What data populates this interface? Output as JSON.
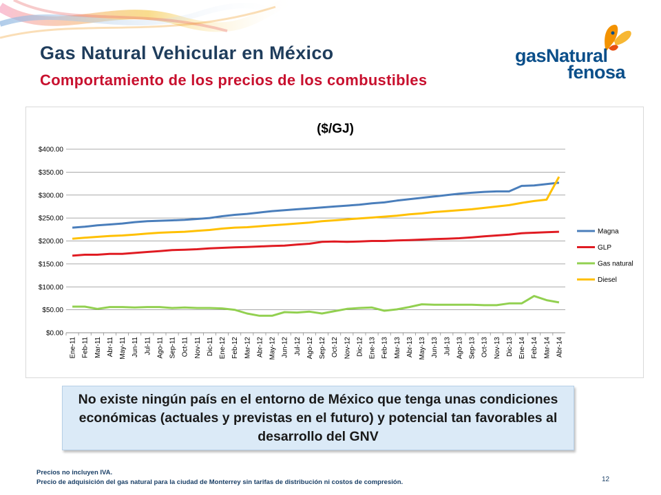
{
  "slide": {
    "title": "Gas Natural Vehicular en México",
    "subtitle": "Comportamiento de los precios de los combustibles",
    "logo_line1": "gasNatural",
    "logo_line2": "fenosa",
    "callout": "No existe ningún país en el entorno de México que tenga unas condiciones económicas (actuales y previstas en el futuro) y potencial tan favorables al desarrollo del GNV",
    "footer_line1": "Precios no incluyen IVA.",
    "footer_line2": "Precio de adquisición del gas natural para la ciudad de Monterrey sin tarifas de distribución ni costos de compresión.",
    "page_number": "12"
  },
  "colors": {
    "title": "#1f3d5c",
    "subtitle": "#c8102e",
    "logo": "#0b4f8a",
    "logo_butterfly": "#f39200"
  },
  "chart_data": {
    "type": "line",
    "title": "($/GJ)",
    "ylim": [
      0,
      400
    ],
    "y_ticks": [
      "$0.00",
      "$50.00",
      "$100.00",
      "$150.00",
      "$200.00",
      "$250.00",
      "$300.00",
      "$350.00",
      "$400.00"
    ],
    "grid": true,
    "legend_position": "right",
    "categories": [
      "Ene-11",
      "Feb-11",
      "Mar-11",
      "Abr-11",
      "May-11",
      "Jun-11",
      "Jul-11",
      "Ago-11",
      "Sep-11",
      "Oct-11",
      "Nov-11",
      "Dic-11",
      "Ene-12",
      "Feb-12",
      "Mar-12",
      "Abr-12",
      "May-12",
      "Jun-12",
      "Jul-12",
      "Ago-12",
      "Sep-12",
      "Oct-12",
      "Nov-12",
      "Dic-12",
      "Ene-13",
      "Feb-13",
      "Mar-13",
      "Abr-13",
      "May-13",
      "Jun-13",
      "Jul-13",
      "Ago-13",
      "Sep-13",
      "Oct-13",
      "Nov-13",
      "Dic-13",
      "Ene-14",
      "Feb-14",
      "Mar-14",
      "Abr-14"
    ],
    "series": [
      {
        "name": "Magna",
        "color": "#4a7ebb",
        "values": [
          229,
          231,
          234,
          236,
          238,
          241,
          243,
          244,
          245,
          246,
          248,
          250,
          254,
          257,
          259,
          262,
          265,
          267,
          269,
          271,
          273,
          275,
          277,
          279,
          282,
          284,
          288,
          291,
          294,
          297,
          300,
          303,
          305,
          307,
          308,
          308,
          320,
          321,
          324,
          327
        ]
      },
      {
        "name": "GLP",
        "color": "#e01b22",
        "values": [
          168,
          170,
          170,
          172,
          172,
          174,
          176,
          178,
          180,
          181,
          182,
          184,
          185,
          186,
          187,
          188,
          189,
          190,
          192,
          194,
          198,
          199,
          198,
          199,
          200,
          200,
          201,
          202,
          203,
          204,
          205,
          206,
          208,
          210,
          212,
          214,
          217,
          218,
          219,
          220
        ]
      },
      {
        "name": "Gas natural",
        "color": "#92d050",
        "values": [
          57,
          57,
          52,
          56,
          56,
          55,
          56,
          56,
          54,
          55,
          54,
          54,
          53,
          50,
          42,
          37,
          37,
          45,
          44,
          46,
          42,
          47,
          52,
          54,
          55,
          48,
          51,
          56,
          62,
          61,
          61,
          61,
          61,
          60,
          60,
          64,
          64,
          80,
          71,
          66
        ]
      },
      {
        "name": "Diesel",
        "color": "#ffc000",
        "values": [
          205,
          207,
          209,
          211,
          212,
          214,
          216,
          218,
          219,
          220,
          222,
          224,
          227,
          229,
          230,
          232,
          234,
          236,
          238,
          240,
          243,
          245,
          247,
          249,
          251,
          253,
          255,
          258,
          260,
          263,
          265,
          267,
          269,
          272,
          275,
          278,
          283,
          287,
          290,
          340
        ]
      }
    ]
  }
}
